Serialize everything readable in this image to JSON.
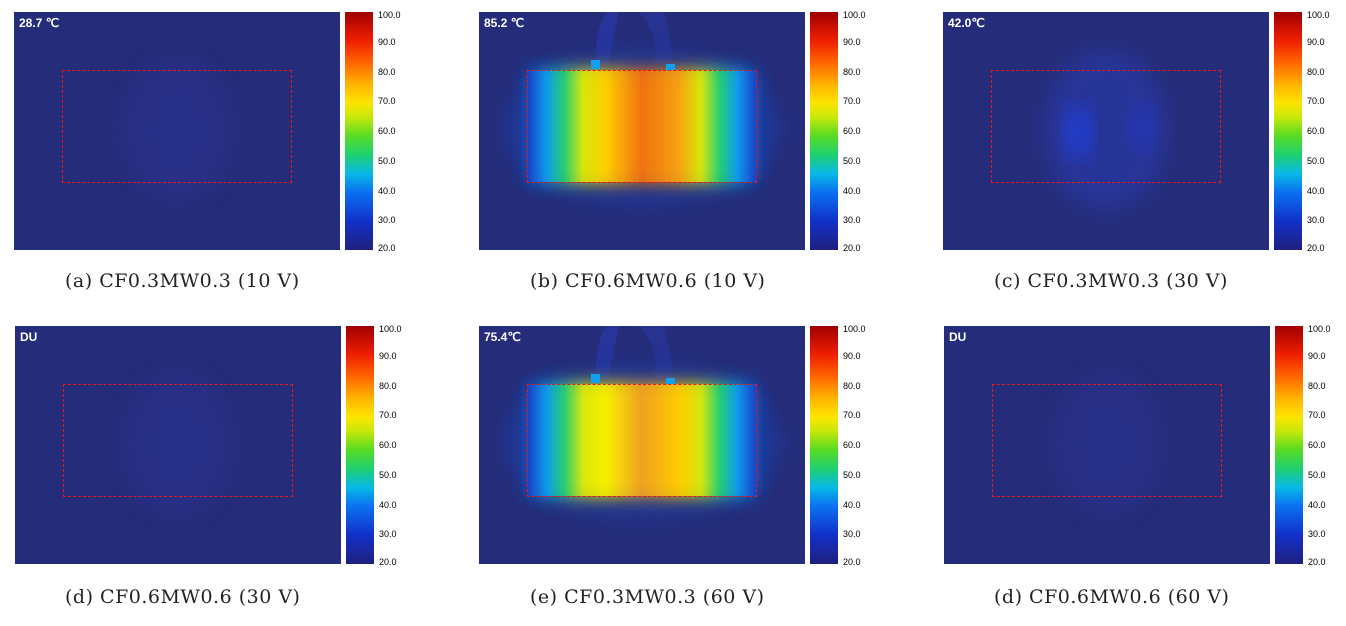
{
  "colorbar": {
    "ticks": [
      "100.0",
      "90.0",
      "80.0",
      "70.0",
      "60.0",
      "50.0",
      "40.0",
      "30.0",
      "20.0"
    ],
    "range": [
      20,
      100
    ],
    "colors": [
      "#20207e",
      "#1230c8",
      "#0a6ff0",
      "#08b8e8",
      "#1fd070",
      "#58dc22",
      "#c8e80a",
      "#ffe400",
      "#ffb000",
      "#ff6c00",
      "#f01e00",
      "#a00000"
    ]
  },
  "panels": [
    {
      "temp_label": "28.7 ℃",
      "caption": "(a) CF0.3MW0.3 (10 V)",
      "hot": false
    },
    {
      "temp_label": "85.2 ℃",
      "caption": "(b) CF0.6MW0.6 (10 V)",
      "hot": true,
      "intensity": "high"
    },
    {
      "temp_label": "42.0℃",
      "caption": "(c) CF0.3MW0.3 (30 V)",
      "hot": false,
      "faint_spot": true
    },
    {
      "temp_label": "DU",
      "caption": "(d) CF0.6MW0.6 (30 V)",
      "hot": false
    },
    {
      "temp_label": "75.4℃",
      "caption": "(e) CF0.3MW0.3 (60 V)",
      "hot": true,
      "intensity": "medium"
    },
    {
      "temp_label": "DU",
      "caption": "(d) CF0.6MW0.6 (60 V)",
      "hot": false
    }
  ],
  "colors": {
    "background_field": "#252d7a",
    "roi_dashed": "#e01a1a"
  }
}
